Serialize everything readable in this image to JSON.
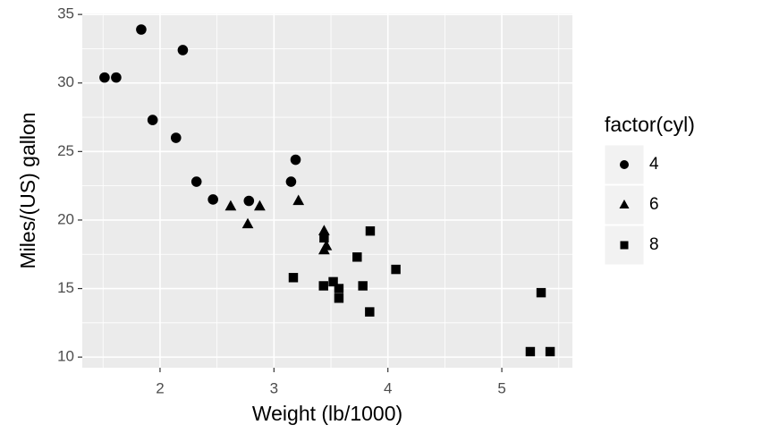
{
  "chart_data": {
    "type": "scatter",
    "x_label": "Weight (lb/1000)",
    "y_label": "Miles/(US) gallon",
    "legend_title": "factor(cyl)",
    "legend_position": "right",
    "xlim": [
      1.3175,
      5.6195
    ],
    "xticks": [
      2,
      3,
      4,
      5
    ],
    "ylim": [
      9.225,
      35.075
    ],
    "yticks": [
      10,
      15,
      20,
      25,
      30,
      35
    ],
    "grid": true,
    "series": [
      {
        "name": "4",
        "color": "#000000",
        "marker": "circle",
        "x": [
          2.32,
          3.19,
          3.15,
          2.2,
          1.615,
          1.835,
          2.465,
          1.935,
          2.14,
          1.513,
          2.78
        ],
        "values": [
          22.8,
          24.4,
          22.8,
          32.4,
          30.4,
          33.9,
          21.5,
          27.3,
          26.0,
          30.4,
          21.4
        ]
      },
      {
        "name": "6",
        "color": "#000000",
        "marker": "triangle",
        "x": [
          2.62,
          2.875,
          3.215,
          3.46,
          3.44,
          3.44,
          2.77
        ],
        "values": [
          21.0,
          21.0,
          21.4,
          18.1,
          19.2,
          17.8,
          19.7
        ]
      },
      {
        "name": "8",
        "color": "#000000",
        "marker": "square",
        "x": [
          3.44,
          3.57,
          4.07,
          3.73,
          3.78,
          5.25,
          5.424,
          5.345,
          3.52,
          3.435,
          3.84,
          3.845,
          3.17,
          3.57
        ],
        "values": [
          18.7,
          14.3,
          16.4,
          17.3,
          15.2,
          10.4,
          10.4,
          14.7,
          15.5,
          15.2,
          13.3,
          19.2,
          15.8,
          15.0
        ]
      }
    ]
  }
}
